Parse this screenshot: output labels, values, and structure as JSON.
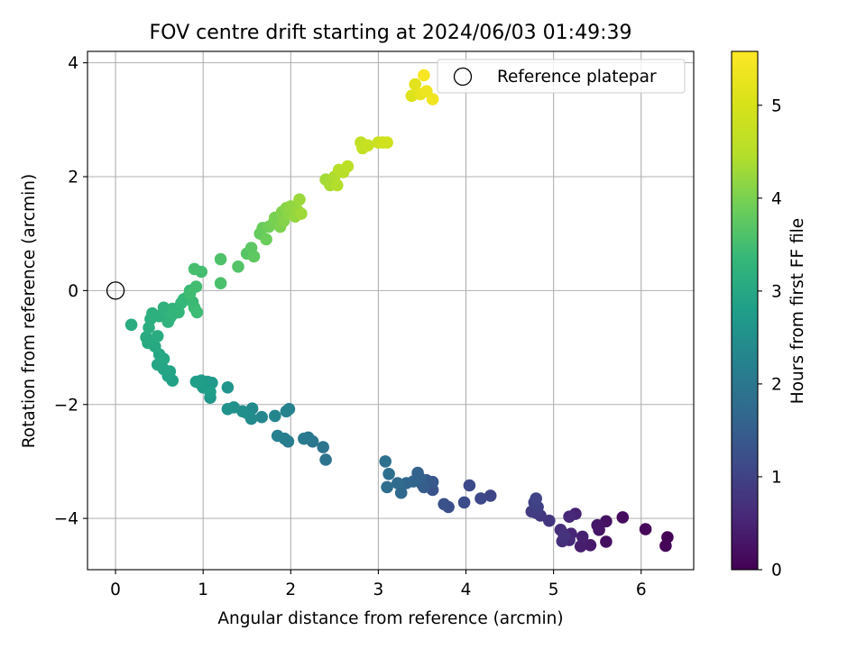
{
  "chart_data": {
    "type": "scatter",
    "title": "FOV centre drift starting at 2024/06/03 01:49:39",
    "xlabel": "Angular distance from reference (arcmin)",
    "ylabel": "Rotation from reference (arcmin)",
    "xlim": [
      -0.32,
      6.6
    ],
    "ylim": [
      -4.9,
      4.2
    ],
    "xticks": [
      0,
      1,
      2,
      3,
      4,
      5,
      6
    ],
    "yticks": [
      -4,
      -2,
      0,
      2,
      4
    ],
    "xtick_labels": [
      "0",
      "1",
      "2",
      "3",
      "4",
      "5",
      "6"
    ],
    "ytick_labels": [
      "−4",
      "−2",
      "0",
      "2",
      "4"
    ],
    "grid": true,
    "colormap": "viridis",
    "colorbar": {
      "label": "Hours from first FF file",
      "range": [
        0,
        5.58
      ],
      "ticks": [
        0,
        1,
        2,
        3,
        4,
        5
      ],
      "tick_labels": [
        "0",
        "1",
        "2",
        "3",
        "4",
        "5"
      ]
    },
    "legend": {
      "position": "upper right",
      "entries": [
        {
          "label": "Reference platepar",
          "marker": "open-circle",
          "color": "#000000"
        }
      ]
    },
    "reference_point": {
      "x": 0,
      "y": 0
    },
    "point_fields": [
      "x",
      "y",
      "hours"
    ],
    "points": [
      [
        6.3,
        -4.33,
        0.02
      ],
      [
        6.28,
        -4.48,
        0.06
      ],
      [
        6.05,
        -4.19,
        0.1
      ],
      [
        5.79,
        -3.98,
        0.15
      ],
      [
        5.6,
        -4.41,
        0.2
      ],
      [
        5.6,
        -4.05,
        0.24
      ],
      [
        5.52,
        -4.2,
        0.28
      ],
      [
        5.5,
        -4.12,
        0.32
      ],
      [
        5.42,
        -4.47,
        0.36
      ],
      [
        5.31,
        -4.49,
        0.4
      ],
      [
        5.33,
        -4.32,
        0.44
      ],
      [
        5.25,
        -3.92,
        0.48
      ],
      [
        5.2,
        -4.27,
        0.52
      ],
      [
        5.18,
        -3.97,
        0.56
      ],
      [
        5.18,
        -4.38,
        0.6
      ],
      [
        5.12,
        -4.28,
        0.63
      ],
      [
        5.08,
        -4.2,
        0.66
      ],
      [
        5.1,
        -4.4,
        0.7
      ],
      [
        5.12,
        -4.3,
        0.74
      ],
      [
        4.95,
        -4.04,
        0.78
      ],
      [
        4.85,
        -3.95,
        0.82
      ],
      [
        4.8,
        -3.9,
        0.86
      ],
      [
        4.75,
        -3.88,
        0.9
      ],
      [
        4.82,
        -3.8,
        0.94
      ],
      [
        4.78,
        -3.72,
        0.98
      ],
      [
        4.8,
        -3.65,
        1.02
      ],
      [
        4.28,
        -3.6,
        1.06
      ],
      [
        4.17,
        -3.65,
        1.1
      ],
      [
        4.04,
        -3.42,
        1.14
      ],
      [
        3.98,
        -3.72,
        1.18
      ],
      [
        3.8,
        -3.8,
        1.22
      ],
      [
        3.75,
        -3.75,
        1.26
      ],
      [
        3.62,
        -3.5,
        1.3
      ],
      [
        3.6,
        -3.38,
        1.34
      ],
      [
        3.62,
        -3.36,
        1.38
      ],
      [
        3.55,
        -3.33,
        1.42
      ],
      [
        3.52,
        -3.45,
        1.46
      ],
      [
        3.5,
        -3.4,
        1.5
      ],
      [
        3.48,
        -3.3,
        1.54
      ],
      [
        3.45,
        -3.2,
        1.58
      ],
      [
        3.4,
        -3.35,
        1.62
      ],
      [
        3.32,
        -3.38,
        1.66
      ],
      [
        3.26,
        -3.55,
        1.7
      ],
      [
        3.22,
        -3.38,
        1.74
      ],
      [
        3.1,
        -3.45,
        1.78
      ],
      [
        3.12,
        -3.22,
        1.82
      ],
      [
        3.08,
        -3.0,
        1.86
      ],
      [
        2.4,
        -2.97,
        1.9
      ],
      [
        2.37,
        -2.75,
        1.94
      ],
      [
        2.25,
        -2.65,
        1.98
      ],
      [
        2.2,
        -2.58,
        2.02
      ],
      [
        2.15,
        -2.6,
        2.06
      ],
      [
        1.97,
        -2.65,
        2.1
      ],
      [
        1.93,
        -2.6,
        2.14
      ],
      [
        1.85,
        -2.55,
        2.18
      ],
      [
        1.98,
        -2.08,
        2.22
      ],
      [
        1.95,
        -2.12,
        2.26
      ],
      [
        1.82,
        -2.2,
        2.3
      ],
      [
        1.67,
        -2.22,
        2.34
      ],
      [
        1.56,
        -2.07,
        2.38
      ],
      [
        1.55,
        -2.25,
        2.42
      ],
      [
        1.5,
        -2.15,
        2.46
      ],
      [
        1.45,
        -2.12,
        2.5
      ],
      [
        1.35,
        -2.05,
        2.54
      ],
      [
        1.28,
        -2.08,
        2.58
      ],
      [
        1.28,
        -1.7,
        2.62
      ],
      [
        1.08,
        -1.88,
        2.66
      ],
      [
        1.1,
        -1.62,
        2.7
      ],
      [
        1.05,
        -1.6,
        2.72
      ],
      [
        1.0,
        -1.7,
        2.74
      ],
      [
        0.98,
        -1.58,
        2.76
      ],
      [
        0.98,
        -1.65,
        2.78
      ],
      [
        1.08,
        -1.78,
        2.8
      ],
      [
        0.92,
        -1.6,
        2.82
      ],
      [
        0.65,
        -1.58,
        2.86
      ],
      [
        0.6,
        -1.5,
        2.9
      ],
      [
        0.62,
        -1.42,
        2.92
      ],
      [
        0.55,
        -1.38,
        2.94
      ],
      [
        0.48,
        -1.3,
        2.96
      ],
      [
        0.5,
        -1.12,
        2.98
      ],
      [
        0.55,
        -1.2,
        3.0
      ],
      [
        0.45,
        -0.98,
        3.02
      ],
      [
        0.37,
        -0.92,
        3.04
      ],
      [
        0.35,
        -0.82,
        3.06
      ],
      [
        0.48,
        -0.8,
        3.08
      ],
      [
        0.18,
        -0.6,
        3.1
      ],
      [
        0.38,
        -0.65,
        3.12
      ],
      [
        0.4,
        -0.5,
        3.14
      ],
      [
        0.42,
        -0.4,
        3.16
      ],
      [
        0.5,
        -0.45,
        3.18
      ],
      [
        0.55,
        -0.3,
        3.2
      ],
      [
        0.6,
        -0.55,
        3.22
      ],
      [
        0.62,
        -0.48,
        3.24
      ],
      [
        0.65,
        -0.32,
        3.26
      ],
      [
        0.65,
        -0.42,
        3.28
      ],
      [
        0.72,
        -0.38,
        3.3
      ],
      [
        0.75,
        -0.22,
        3.32
      ],
      [
        0.78,
        -0.15,
        3.34
      ],
      [
        0.83,
        -0.1,
        3.36
      ],
      [
        0.85,
        0.0,
        3.38
      ],
      [
        0.88,
        -0.2,
        3.4
      ],
      [
        0.9,
        -0.3,
        3.42
      ],
      [
        0.93,
        -0.38,
        3.44
      ],
      [
        0.85,
        -0.05,
        3.46
      ],
      [
        0.92,
        0.07,
        3.48
      ],
      [
        0.98,
        0.33,
        3.5
      ],
      [
        0.9,
        0.38,
        3.52
      ],
      [
        1.2,
        0.13,
        3.56
      ],
      [
        1.2,
        0.55,
        3.6
      ],
      [
        1.4,
        0.42,
        3.64
      ],
      [
        1.5,
        0.65,
        3.68
      ],
      [
        1.55,
        0.75,
        3.72
      ],
      [
        1.58,
        0.6,
        3.76
      ],
      [
        1.65,
        1.0,
        3.8
      ],
      [
        1.68,
        1.1,
        3.84
      ],
      [
        1.72,
        0.9,
        3.88
      ],
      [
        1.75,
        1.12,
        3.92
      ],
      [
        1.8,
        1.18,
        3.95
      ],
      [
        1.82,
        1.28,
        3.98
      ],
      [
        1.88,
        1.12,
        4.02
      ],
      [
        1.9,
        1.38,
        4.05
      ],
      [
        1.92,
        1.22,
        4.08
      ],
      [
        1.95,
        1.45,
        4.11
      ],
      [
        1.98,
        1.35,
        4.14
      ],
      [
        2.0,
        1.48,
        4.17
      ],
      [
        2.05,
        1.3,
        4.2
      ],
      [
        2.08,
        1.4,
        4.23
      ],
      [
        2.1,
        1.6,
        4.26
      ],
      [
        2.12,
        1.35,
        4.29
      ],
      [
        2.4,
        1.95,
        4.33
      ],
      [
        2.45,
        1.85,
        4.37
      ],
      [
        2.5,
        2.0,
        4.41
      ],
      [
        2.53,
        1.85,
        4.45
      ],
      [
        2.55,
        2.12,
        4.49
      ],
      [
        2.6,
        2.08,
        4.53
      ],
      [
        2.65,
        2.18,
        4.57
      ],
      [
        2.8,
        2.6,
        4.65
      ],
      [
        2.82,
        2.5,
        4.7
      ],
      [
        2.88,
        2.55,
        4.75
      ],
      [
        3.0,
        2.6,
        4.8
      ],
      [
        3.05,
        2.6,
        4.85
      ],
      [
        3.1,
        2.6,
        4.9
      ],
      [
        3.38,
        3.42,
        5.1
      ],
      [
        3.42,
        3.62,
        5.18
      ],
      [
        3.48,
        3.45,
        5.25
      ],
      [
        3.55,
        3.5,
        5.32
      ],
      [
        3.62,
        3.36,
        5.4
      ],
      [
        3.52,
        3.78,
        5.5
      ]
    ]
  }
}
